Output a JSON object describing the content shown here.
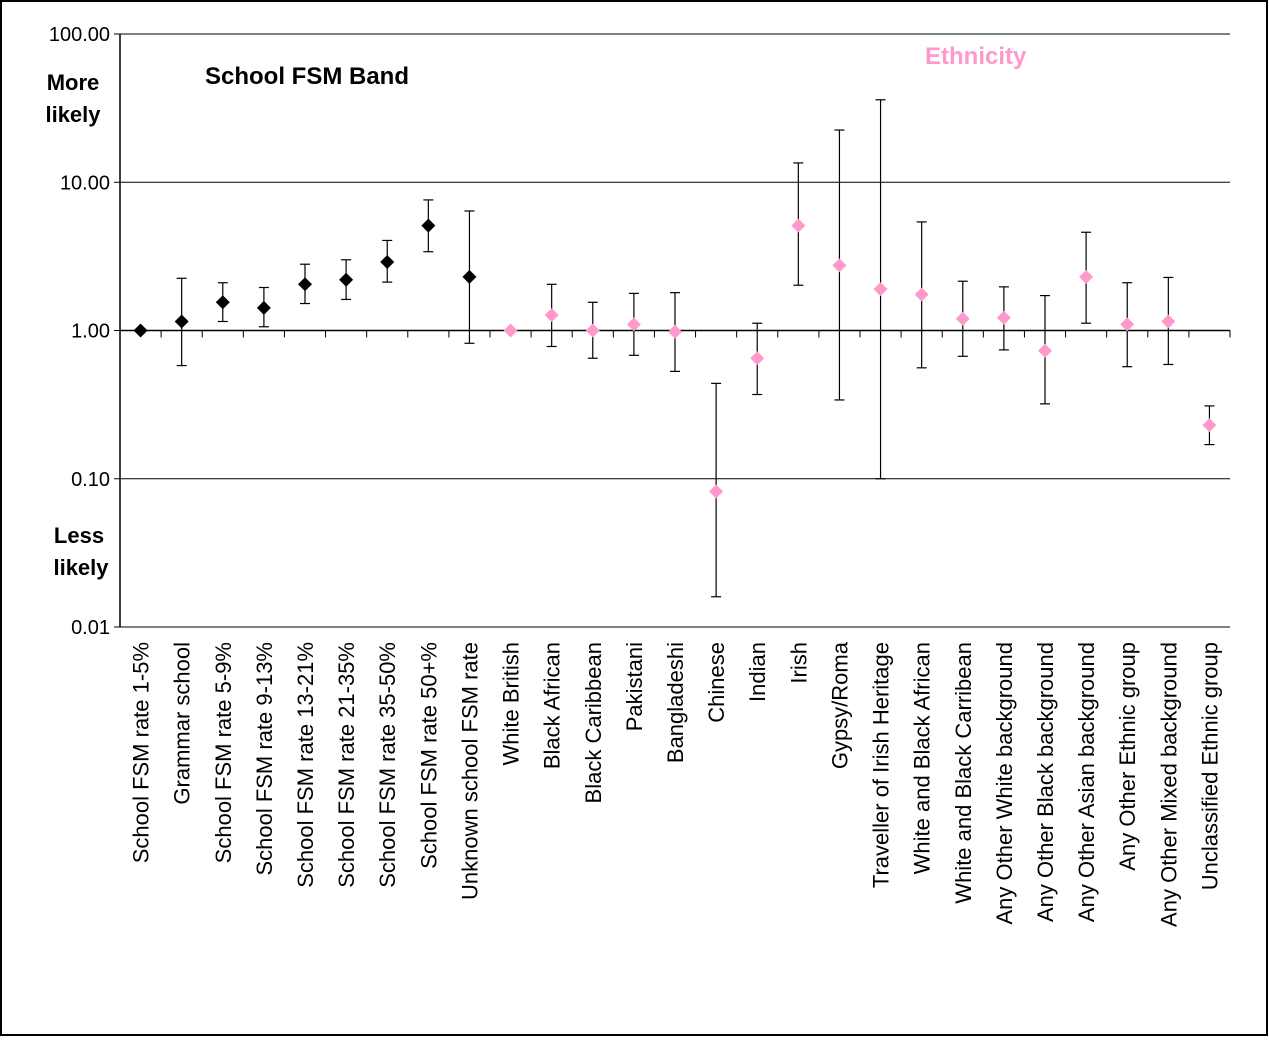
{
  "chart_data": {
    "type": "scatter",
    "yscale": "log",
    "ylim": [
      0.01,
      100
    ],
    "grid": "horizontal major lines",
    "y_ticks": [
      "100.00",
      "10.00",
      "1.00",
      "0.10",
      "0.01"
    ],
    "annotations": {
      "more_likely_line1": "More",
      "more_likely_line2": "likely",
      "less_likely_line1": "Less",
      "less_likely_line2": "likely"
    },
    "section_titles": {
      "fsm": "School FSM Band",
      "ethnicity": "Ethnicity"
    },
    "colors": {
      "fsm": "#000000",
      "ethnicity": "#ff99cc",
      "ethnicity_title": "#ff99cc"
    },
    "categories": [
      "School FSM rate 1-5%",
      "Grammar school",
      "School FSM rate 5-9%",
      "School FSM rate 9-13%",
      "School FSM rate 13-21%",
      "School FSM rate 21-35%",
      "School FSM rate 35-50%",
      "School FSM rate 50+%",
      "Unknown school FSM rate",
      "White British",
      "Black African",
      "Black Caribbean",
      "Pakistani",
      "Bangladeshi",
      "Chinese",
      "Indian",
      "Irish",
      "Gypsy/Roma",
      "Traveller of Irish Heritage",
      "White and Black African",
      "White and Black Carribean",
      "Any Other White background",
      "Any Other Black background",
      "Any Other Asian background",
      "Any Other Ethnic group",
      "Any Other Mixed background",
      "Unclassified Ethnic group"
    ],
    "groups": [
      "fsm",
      "fsm",
      "fsm",
      "fsm",
      "fsm",
      "fsm",
      "fsm",
      "fsm",
      "fsm",
      "ethnicity",
      "ethnicity",
      "ethnicity",
      "ethnicity",
      "ethnicity",
      "ethnicity",
      "ethnicity",
      "ethnicity",
      "ethnicity",
      "ethnicity",
      "ethnicity",
      "ethnicity",
      "ethnicity",
      "ethnicity",
      "ethnicity",
      "ethnicity",
      "ethnicity",
      "ethnicity"
    ],
    "values": [
      1.0,
      1.15,
      1.55,
      1.42,
      2.05,
      2.2,
      2.9,
      5.1,
      2.3,
      1.0,
      1.27,
      1.0,
      1.1,
      0.98,
      0.082,
      0.65,
      5.1,
      2.75,
      1.9,
      1.75,
      1.2,
      1.22,
      0.73,
      2.3,
      1.1,
      1.15,
      0.23
    ],
    "lower": [
      null,
      0.58,
      1.15,
      1.06,
      1.52,
      1.62,
      2.12,
      3.4,
      0.82,
      null,
      0.78,
      0.65,
      0.68,
      0.53,
      0.016,
      0.37,
      2.02,
      0.34,
      0.1,
      0.56,
      0.67,
      0.74,
      0.32,
      1.12,
      0.57,
      0.59,
      0.17
    ],
    "upper": [
      null,
      2.25,
      2.1,
      1.95,
      2.8,
      3.0,
      4.05,
      7.6,
      6.4,
      null,
      2.05,
      1.55,
      1.78,
      1.8,
      0.44,
      1.12,
      13.5,
      22.5,
      36.0,
      5.4,
      2.15,
      1.97,
      1.72,
      4.6,
      2.1,
      2.28,
      0.31
    ]
  }
}
